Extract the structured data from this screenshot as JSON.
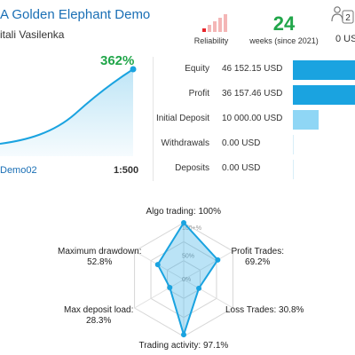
{
  "header": {
    "title": "A Golden Elephant Demo",
    "author": "itali Vasilenka"
  },
  "reliability": {
    "label": "Reliability",
    "bars": [
      {
        "color": "#e8252b",
        "level": 0.2
      },
      {
        "color": "#f4b6b6",
        "level": 0.4
      },
      {
        "color": "#f4b6b6",
        "level": 0.6
      },
      {
        "color": "#f4b6b6",
        "level": 0.8
      },
      {
        "color": "#f4b6b6",
        "level": 1.0
      }
    ]
  },
  "weeks": {
    "value": "24",
    "label": "weeks (since 2021)"
  },
  "subscribers": {
    "count": "2",
    "label": "0 US"
  },
  "growth": {
    "value": "362%",
    "account": "Demo02",
    "leverage": "1:500",
    "color": "#1aa3e0"
  },
  "stats": [
    {
      "label": "Equity",
      "value": "46 152.15 USD",
      "fraction": 1.0,
      "color": "#1aa3e0"
    },
    {
      "label": "Profit",
      "value": "36 157.46 USD",
      "fraction": 1.0,
      "color": "#1aa3e0"
    },
    {
      "label": "Initial Deposit",
      "value": "10 000.00 USD",
      "fraction": 0.42,
      "color": "#8fd6f5"
    },
    {
      "label": "Withdrawals",
      "value": "0.00 USD",
      "fraction": 0.0,
      "color": "#8fd6f5"
    },
    {
      "label": "Deposits",
      "value": "0.00 USD",
      "fraction": 0.0,
      "color": "#8fd6f5"
    }
  ],
  "chart_data": {
    "type": "radar",
    "axes": [
      "Algo trading",
      "Profit Trades",
      "Loss Trades",
      "Trading activity",
      "Max deposit load",
      "Maximum drawdown"
    ],
    "values": [
      100,
      69.2,
      30.8,
      97.1,
      28.3,
      52.8
    ],
    "rings": [
      "100+%",
      "50%",
      "0%"
    ],
    "labels": {
      "algo": {
        "name": "Algo trading:",
        "value": "100%"
      },
      "profit": {
        "name": "Profit Trades:",
        "value": "69.2%"
      },
      "loss": {
        "name": "Loss Trades:",
        "value": "30.8%"
      },
      "activity": {
        "name": "Trading activity:",
        "value": "97.1%"
      },
      "load": {
        "name": "Max deposit load:",
        "value": "28.3%"
      },
      "drawdown": {
        "name": "Maximum drawdown:",
        "value": "52.8%"
      }
    },
    "color": "#1aa3e0"
  }
}
